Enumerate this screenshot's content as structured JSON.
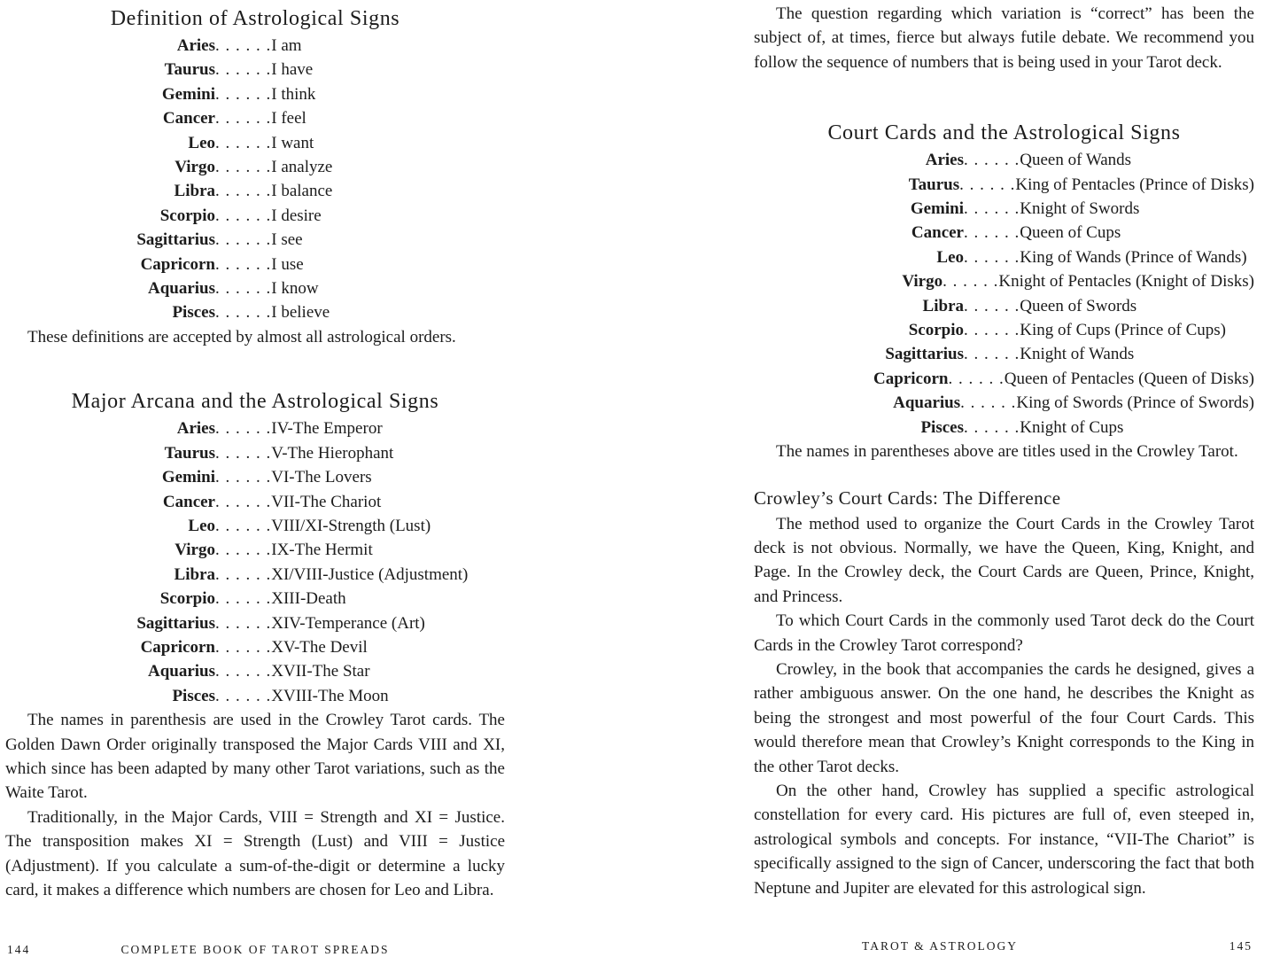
{
  "leader_dots": ". . . . . .",
  "page_left": {
    "page_number": "144",
    "running_title": "COMPLETE BOOK OF TAROT SPREADS",
    "section1": {
      "title": "Definition of Astrological Signs",
      "items": [
        {
          "sign": "Aries",
          "value": "I am"
        },
        {
          "sign": "Taurus",
          "value": "I have"
        },
        {
          "sign": "Gemini",
          "value": "I think"
        },
        {
          "sign": "Cancer",
          "value": "I feel"
        },
        {
          "sign": "Leo",
          "value": "I want"
        },
        {
          "sign": "Virgo",
          "value": "I analyze"
        },
        {
          "sign": "Libra",
          "value": "I balance"
        },
        {
          "sign": "Scorpio",
          "value": "I desire"
        },
        {
          "sign": "Sagittarius",
          "value": "I see"
        },
        {
          "sign": "Capricorn",
          "value": "I use"
        },
        {
          "sign": "Aquarius",
          "value": "I know"
        },
        {
          "sign": "Pisces",
          "value": "I believe"
        }
      ],
      "note": "These definitions are accepted by almost all astrological orders."
    },
    "section2": {
      "title": "Major Arcana and the Astrological Signs",
      "items": [
        {
          "sign": "Aries",
          "value": "IV-The Emperor"
        },
        {
          "sign": "Taurus",
          "value": "V-The Hierophant"
        },
        {
          "sign": "Gemini",
          "value": "VI-The Lovers"
        },
        {
          "sign": "Cancer",
          "value": "VII-The Chariot"
        },
        {
          "sign": "Leo",
          "value": "VIII/XI-Strength (Lust)"
        },
        {
          "sign": "Virgo",
          "value": "IX-The Hermit"
        },
        {
          "sign": "Libra",
          "value": "XI/VIII-Justice (Adjustment)"
        },
        {
          "sign": "Scorpio",
          "value": "XIII-Death"
        },
        {
          "sign": "Sagittarius",
          "value": "XIV-Temperance (Art)"
        },
        {
          "sign": "Capricorn",
          "value": "XV-The Devil"
        },
        {
          "sign": "Aquarius",
          "value": "XVII-The Star"
        },
        {
          "sign": "Pisces",
          "value": "XVIII-The Moon"
        }
      ],
      "paragraphs": [
        "The names in parenthesis are used in the Crowley Tarot cards. The Golden Dawn Order originally transposed the Major Cards VIII and XI, which since has been adapted by many other Tarot variations, such as the Waite Tarot.",
        "Traditionally, in the Major Cards, VIII = Strength and XI = Justice. The transposition makes XI = Strength (Lust) and VIII = Justice (Adjustment). If you calculate a sum-of-the-digit or determine a lucky card, it makes a difference which numbers are chosen for Leo and Libra."
      ]
    }
  },
  "page_right": {
    "page_number": "145",
    "running_title": "TAROT & ASTROLOGY",
    "intro_paragraphs": [
      "The question regarding which variation is “correct” has been the subject of, at times, fierce but always futile debate. We recommend you follow the sequence of numbers that is being used in your Tarot deck."
    ],
    "section": {
      "title": "Court Cards and the Astrological Signs",
      "items": [
        {
          "sign": "Aries",
          "value": "Queen of Wands"
        },
        {
          "sign": "Taurus",
          "value": "King of Pentacles (Prince of Disks)"
        },
        {
          "sign": "Gemini",
          "value": "Knight of Swords"
        },
        {
          "sign": "Cancer",
          "value": "Queen of Cups"
        },
        {
          "sign": "Leo",
          "value": "King of Wands (Prince of Wands)"
        },
        {
          "sign": "Virgo",
          "value": "Knight of Pentacles (Knight of Disks)"
        },
        {
          "sign": "Libra",
          "value": "Queen of Swords"
        },
        {
          "sign": "Scorpio",
          "value": "King of Cups (Prince of Cups)"
        },
        {
          "sign": "Sagittarius",
          "value": "Knight of Wands"
        },
        {
          "sign": "Capricorn",
          "value": "Queen of Pentacles (Queen of Disks)"
        },
        {
          "sign": "Aquarius",
          "value": "King of Swords (Prince of Swords)"
        },
        {
          "sign": "Pisces",
          "value": "Knight of Cups"
        }
      ],
      "note": "The names in parentheses above are titles used in the Crowley Tarot."
    },
    "subsection": {
      "title": "Crowley’s Court Cards: The Difference",
      "paragraphs": [
        "The method used to organize the Court Cards in the Crowley Tarot deck is not obvious. Normally, we have the Queen, King, Knight, and Page. In the Crowley deck, the Court Cards are Queen, Prince, Knight, and Princess.",
        "To which Court Cards in the commonly used Tarot deck do the Court Cards in the Crowley Tarot correspond?",
        "Crowley, in the book that accompanies the cards he designed, gives a rather ambiguous answer. On the one hand, he describes the Knight as being the strongest and most powerful of the four Court Cards. This would therefore mean that Crowley’s Knight corresponds to the King in the other Tarot decks.",
        "On the other hand, Crowley has supplied a specific astrological constellation for every card. His pictures are full of, even steeped in, astrological symbols and concepts. For instance, “VII-The Chariot” is specifically assigned to the sign of Cancer, underscoring the fact that both Neptune and Jupiter are elevated for this astrological sign."
      ]
    }
  }
}
